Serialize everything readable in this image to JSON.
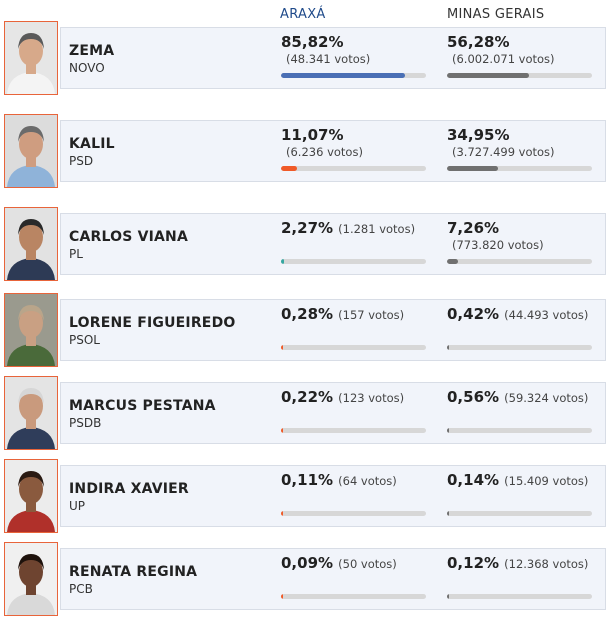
{
  "headers": {
    "local": "ARAXÁ",
    "state": "MINAS GERAIS"
  },
  "colors": {
    "local_header": "#1f4a8a",
    "border_accent": "#e8643a",
    "state_bar": "#707070"
  },
  "candidates": [
    {
      "name": "ZEMA",
      "party": "NOVO",
      "local": {
        "pct": "85,82%",
        "votes": "(48.341 votos)",
        "share": 85.82,
        "color": "#4a6fb5"
      },
      "state": {
        "pct": "56,28%",
        "votes": "(6.002.071 votos)",
        "share": 56.28,
        "color": "#707070"
      },
      "photo": {
        "bg": "#e6e6e6",
        "skin": "#d7a98a",
        "hair": "#5a5a5a",
        "shirt": "#f4f4f4"
      }
    },
    {
      "name": "KALIL",
      "party": "PSD",
      "local": {
        "pct": "11,07%",
        "votes": "(6.236 votos)",
        "share": 11.07,
        "color": "#f05a28"
      },
      "state": {
        "pct": "34,95%",
        "votes": "(3.727.499 votos)",
        "share": 34.95,
        "color": "#707070"
      },
      "photo": {
        "bg": "#dcdcdc",
        "skin": "#cf9d80",
        "hair": "#6b6b6b",
        "shirt": "#8fb3d9"
      }
    },
    {
      "name": "CARLOS VIANA",
      "party": "PL",
      "local": {
        "pct": "2,27%",
        "votes": "(1.281 votos)",
        "share": 2.27,
        "color": "#35a7a1"
      },
      "state": {
        "pct": "7,26%",
        "votes": "(773.820 votos)",
        "share": 7.26,
        "color": "#707070"
      },
      "photo": {
        "bg": "#e2e2e2",
        "skin": "#b98563",
        "hair": "#2a2a2a",
        "shirt": "#2d3a55"
      }
    },
    {
      "name": "LORENE FIGUEIREDO",
      "party": "PSOL",
      "local": {
        "pct": "0,28%",
        "votes": "(157 votos)",
        "share": 0.28,
        "color": "#f05a28"
      },
      "state": {
        "pct": "0,42%",
        "votes": "(44.493 votos)",
        "share": 0.42,
        "color": "#707070"
      },
      "photo": {
        "bg": "#9a9a8e",
        "skin": "#c9a083",
        "hair": "#b9a58a",
        "shirt": "#4a6a3a"
      }
    },
    {
      "name": "MARCUS PESTANA",
      "party": "PSDB",
      "local": {
        "pct": "0,22%",
        "votes": "(123 votos)",
        "share": 0.22,
        "color": "#f05a28"
      },
      "state": {
        "pct": "0,56%",
        "votes": "(59.324 votos)",
        "share": 0.56,
        "color": "#707070"
      },
      "photo": {
        "bg": "#e4e4e4",
        "skin": "#c99a7d",
        "hair": "#d6d6d6",
        "shirt": "#2f3d5a"
      }
    },
    {
      "name": "INDIRA XAVIER",
      "party": "UP",
      "local": {
        "pct": "0,11%",
        "votes": "(64 votos)",
        "share": 0.11,
        "color": "#f05a28"
      },
      "state": {
        "pct": "0,14%",
        "votes": "(15.409 votos)",
        "share": 0.14,
        "color": "#707070"
      },
      "photo": {
        "bg": "#ececec",
        "skin": "#8a5a3e",
        "hair": "#2a1a12",
        "shirt": "#b0302a"
      }
    },
    {
      "name": "RENATA REGINA",
      "party": "PCB",
      "local": {
        "pct": "0,09%",
        "votes": "(50 votos)",
        "share": 0.09,
        "color": "#f05a28"
      },
      "state": {
        "pct": "0,12%",
        "votes": "(12.368 votos)",
        "share": 0.12,
        "color": "#707070"
      },
      "photo": {
        "bg": "#f0f0f0",
        "skin": "#6e4430",
        "hair": "#1e120c",
        "shirt": "#d9d9d9"
      }
    }
  ]
}
